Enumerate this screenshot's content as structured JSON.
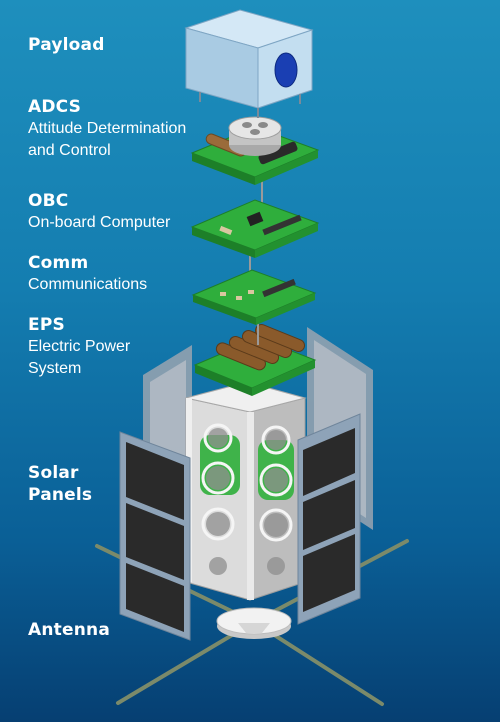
{
  "labels": {
    "payload": {
      "title": "Payload"
    },
    "adcs": {
      "title": "ADCS",
      "line1": "Attitude Determination",
      "line2": "and Control"
    },
    "obc": {
      "title": "OBC",
      "line1": "On-board Computer"
    },
    "comm": {
      "title": "Comm",
      "line1": "Communications"
    },
    "eps": {
      "title": "EPS",
      "line1": "Electric Power",
      "line2": "System"
    },
    "solar": {
      "line1": "Solar",
      "line2": "Panels"
    },
    "antenna": {
      "title": "Antenna"
    }
  },
  "colors": {
    "pcb": "#2fae3c",
    "pcb_dark": "#1d7f28",
    "frame": "#d9d9d9",
    "solar_cell": "#2a2a2a",
    "solar_frame": "#8ea3b8",
    "payload_box": "#b9d8ee",
    "lens": "#1a3fb3"
  }
}
